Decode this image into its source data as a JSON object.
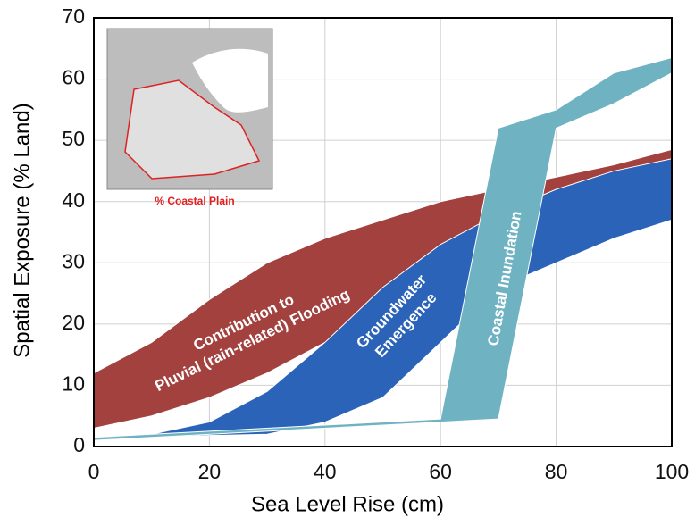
{
  "chart_data": {
    "type": "area",
    "xlabel": "Sea Level Rise (cm)",
    "ylabel": "Spatial Exposure (% Land)",
    "xlim": [
      0,
      100
    ],
    "xticks": [
      0,
      20,
      40,
      60,
      80,
      100
    ],
    "ylim": [
      0,
      70
    ],
    "yticks": [
      0,
      10,
      20,
      30,
      40,
      50,
      60,
      70
    ],
    "grid": true,
    "inset_caption": "% Coastal Plain",
    "series": [
      {
        "label": [
          "Contribution to",
          "Pluvial (rain-related) Flooding"
        ],
        "color": "#a3413f",
        "x": [
          0,
          10,
          20,
          30,
          40,
          50,
          60,
          70,
          80,
          90,
          100,
          100,
          90,
          80,
          70,
          60,
          50,
          40,
          30,
          20,
          10,
          0
        ],
        "y": [
          12,
          17,
          24,
          30,
          34,
          37,
          40,
          42,
          44,
          46,
          48.5,
          47,
          43,
          38,
          32,
          26,
          22,
          17,
          12,
          8,
          5,
          3
        ]
      },
      {
        "label": [
          "Groundwater",
          "Emergence"
        ],
        "color": "#2a63b8",
        "x": [
          0,
          10,
          20,
          30,
          40,
          50,
          60,
          70,
          80,
          90,
          100,
          100,
          90,
          80,
          70,
          60,
          50,
          40,
          30,
          20,
          10,
          0
        ],
        "y": [
          1.5,
          2,
          4,
          9,
          17,
          26,
          33,
          38,
          42,
          45,
          47,
          37,
          34,
          30,
          26,
          17,
          8,
          4,
          2,
          1.8,
          1.5,
          1
        ]
      },
      {
        "label": [
          "Coastal Inundation"
        ],
        "color": "#6fb3c3",
        "x": [
          0,
          60,
          70,
          80,
          90,
          100,
          100,
          90,
          80,
          70,
          60,
          0
        ],
        "y": [
          1.5,
          4.5,
          52,
          55,
          61,
          63.5,
          61,
          56,
          52,
          4.5,
          4,
          1
        ]
      }
    ]
  }
}
